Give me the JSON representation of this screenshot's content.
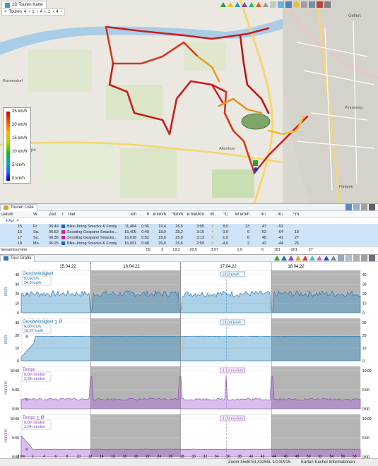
{
  "map": {
    "tab_title": "2D Touren Karte",
    "filter_label": "Touren",
    "filter_values": [
      "4",
      "1",
      "4",
      "1",
      "4"
    ],
    "legend": {
      "unit_labels": [
        "25 km/h",
        "20 km/h",
        "15 km/h",
        "10 km/h",
        "5 km/h",
        "0 km/h"
      ]
    },
    "place_labels": [
      "Gellert",
      "Ravensdorf",
      "Stampe",
      "Flintbek",
      "Altenholz",
      "Pinneberg"
    ],
    "marker_label": "1"
  },
  "tour_list": {
    "tab_title": "Touren Liste",
    "headers": [
      "Datum",
      "W",
      "Zeit",
      "T",
      "Titel",
      "km",
      "h",
      "ø km/h",
      "^km/h",
      "ø min/km",
      "W",
      "°C",
      "W km/h",
      "m↑",
      "m↓",
      "^m"
    ],
    "group": {
      "label": "Apr.",
      "count": "4"
    },
    "rows": [
      {
        "day": "15",
        "weekday": "Fr.",
        "time": "06:49",
        "title": "Bike-Jöring Smacks & Frosty",
        "km": "11,484",
        "h": "0:36",
        "avg": "19,4",
        "max": "26,5",
        "pace": "3:05",
        "temp": "8,0",
        "wind": "13",
        "up": "47",
        "down": "-52",
        "maxh": "",
        "color": "#2060d0"
      },
      {
        "day": "16",
        "weekday": "Sa.",
        "time": "06:52",
        "title": "Scooting Gespann Smacks...",
        "km": "15,405",
        "h": "0:49",
        "avg": "18,9",
        "max": "25,2",
        "pace": "3:10",
        "temp": "0,0",
        "wind": "6",
        "up": "52",
        "down": "-64",
        "maxh": "19",
        "color": "#d02090"
      },
      {
        "day": "17",
        "weekday": "So.",
        "time": "06:36",
        "title": "Scooting Gespann Smacks...",
        "km": "16,018",
        "h": "0:52",
        "avg": "18,6",
        "max": "25,9",
        "pace": "3:13",
        "temp": "-1,0",
        "wind": "6",
        "up": "40",
        "down": "-41",
        "maxh": "27",
        "color": "#d02090"
      },
      {
        "day": "18",
        "weekday": "Mo.",
        "time": "06:25",
        "title": "Bike-Jöring Smacks & Frosty",
        "km": "16,091",
        "h": "0:48",
        "avg": "20,0",
        "max": "25,6",
        "pace": "2:59",
        "temp": "-4,0",
        "wind": "2",
        "up": "42",
        "down": "-44",
        "maxh": "26",
        "color": "#2060d0"
      }
    ],
    "total": {
      "label": "Gesamtsumme",
      "km": "59",
      "h": "3",
      "avg": "19,2",
      "max": "26,5",
      "pace": "3:07",
      "temp": "1,0",
      "wind": "6",
      "up": "181",
      "down": "-201",
      "maxh": "27"
    }
  },
  "graph": {
    "tab_title": "Tour Grafik",
    "dates": [
      "15.04.22",
      "16.04.22",
      "17.04.22",
      "18.04.22"
    ],
    "charts": [
      {
        "title": "Geschwindigkeit",
        "unit": "km/h",
        "readout1": "0,0 km/h",
        "readout2": "24,8 km/h",
        "marker": "18,8 km/h",
        "yticks": [
          "0",
          "10",
          "20",
          "30",
          "40"
        ],
        "color": "#1f6fa8"
      },
      {
        "title": "Geschwindigkeit ∑ Ø",
        "unit": "km/h",
        "readout1": "0,00 km/h",
        "readout2": "15,37 km/h",
        "marker": "19,04 km/h",
        "yticks": [
          "0",
          "10",
          "20",
          "30"
        ],
        "color": "#1f6fa8"
      },
      {
        "title": "Tempo",
        "unit": "min/km",
        "readout1": "0,00 min/km",
        "readout2": "2,38 min/km",
        "marker": "3,13 min/km",
        "yticks": [
          "0:00",
          "5:00",
          "10:00"
        ],
        "color": "#8a3fb5"
      },
      {
        "title": "Tempo ∑ Ø",
        "unit": "min/km",
        "readout1": "0,00 min/km",
        "readout2": "1,54 min/km",
        "marker": "3,09 min/km",
        "yticks": [
          "0:00",
          "5:00",
          "10:00"
        ],
        "color": "#8a3fb5"
      }
    ],
    "xticks": [
      "0 km",
      "2",
      "4",
      "6",
      "8",
      "10",
      "12",
      "14",
      "16",
      "18",
      "20",
      "22",
      "24",
      "26",
      "28",
      "30",
      "32",
      "34",
      "36",
      "38",
      "40",
      "42",
      "44",
      "46",
      "48",
      "50",
      "52",
      "54",
      "56",
      "58"
    ]
  },
  "status": {
    "zoom": "Zoom:15x",
    "lat": "B:54,33259",
    "lon": "L:10,00915",
    "info": "Karten Kachel Informationen"
  }
}
